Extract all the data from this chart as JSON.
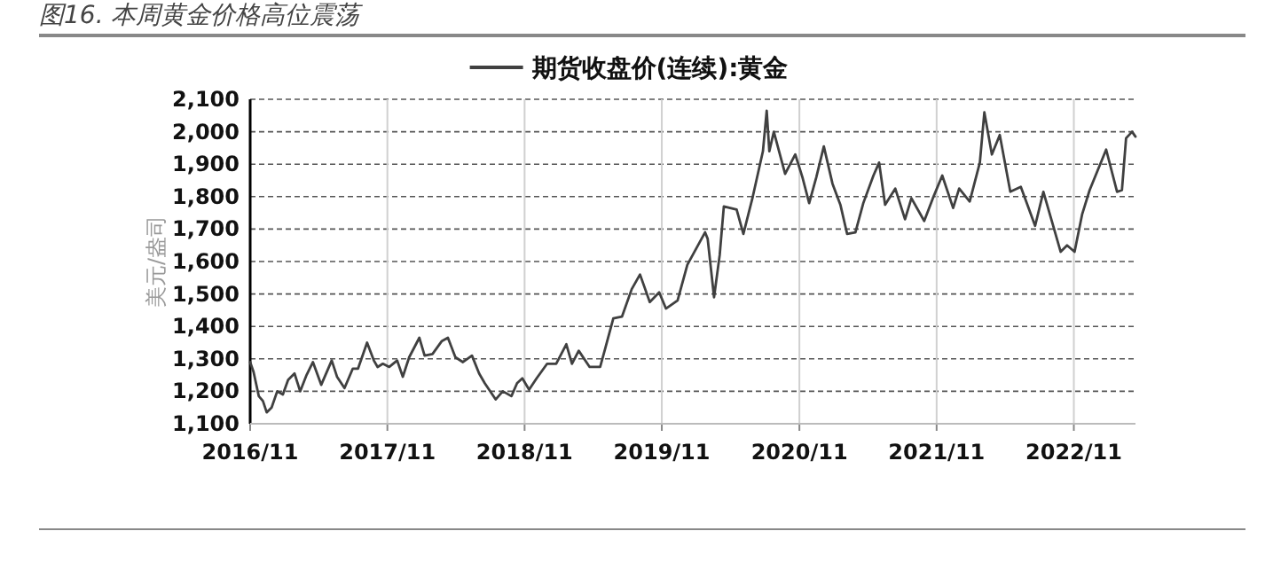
{
  "chart_data": {
    "type": "line",
    "title": "图16. 本周黄金价格高位震荡",
    "ylabel": "美元/盎司",
    "legend": "top",
    "grid": true,
    "line_style": "solid",
    "xlim": [
      "2016-11-01",
      "2023-04-14"
    ],
    "xticks": [
      {
        "value": "2016-11",
        "label": "2016/11"
      },
      {
        "value": "2017-11",
        "label": "2017/11"
      },
      {
        "value": "2018-11",
        "label": "2018/11"
      },
      {
        "value": "2019-11",
        "label": "2019/11"
      },
      {
        "value": "2020-11",
        "label": "2020/11"
      },
      {
        "value": "2021-11",
        "label": "2021/11"
      },
      {
        "value": "2022-11",
        "label": "2022/11"
      }
    ],
    "ylim": [
      1100,
      2100
    ],
    "yticks": [
      {
        "value": 1100,
        "label": "1,100"
      },
      {
        "value": 1200,
        "label": "1,200"
      },
      {
        "value": 1300,
        "label": "1,300"
      },
      {
        "value": 1400,
        "label": "1,400"
      },
      {
        "value": 1500,
        "label": "1,500"
      },
      {
        "value": 1600,
        "label": "1,600"
      },
      {
        "value": 1700,
        "label": "1,700"
      },
      {
        "value": 1800,
        "label": "1,800"
      },
      {
        "value": 1900,
        "label": "1,900"
      },
      {
        "value": 2000,
        "label": "2,000"
      },
      {
        "value": 2100,
        "label": "2,100"
      }
    ],
    "x": [
      "2016-11-01",
      "2016-11-10",
      "2016-11-24",
      "2016-12-05",
      "2016-12-15",
      "2016-12-28",
      "2017-01-12",
      "2017-01-27",
      "2017-02-10",
      "2017-02-27",
      "2017-03-14",
      "2017-03-31",
      "2017-04-17",
      "2017-05-09",
      "2017-06-06",
      "2017-06-20",
      "2017-07-10",
      "2017-08-01",
      "2017-08-15",
      "2017-09-08",
      "2017-09-26",
      "2017-10-06",
      "2017-10-20",
      "2017-11-06",
      "2017-11-27",
      "2017-12-12",
      "2017-12-29",
      "2018-01-25",
      "2018-02-08",
      "2018-03-01",
      "2018-03-26",
      "2018-04-11",
      "2018-05-01",
      "2018-05-21",
      "2018-06-14",
      "2018-07-03",
      "2018-07-18",
      "2018-08-16",
      "2018-09-04",
      "2018-09-27",
      "2018-10-12",
      "2018-10-26",
      "2018-11-13",
      "2018-12-03",
      "2018-12-31",
      "2019-01-24",
      "2019-02-20",
      "2019-03-07",
      "2019-03-25",
      "2019-04-23",
      "2019-05-21",
      "2019-06-03",
      "2019-06-25",
      "2019-07-18",
      "2019-08-13",
      "2019-09-04",
      "2019-09-30",
      "2019-10-25",
      "2019-11-12",
      "2019-12-13",
      "2020-01-08",
      "2020-02-24",
      "2020-03-02",
      "2020-03-19",
      "2020-04-03",
      "2020-04-14",
      "2020-05-18",
      "2020-06-05",
      "2020-06-30",
      "2020-07-27",
      "2020-08-06",
      "2020-08-13",
      "2020-08-25",
      "2020-09-24",
      "2020-10-21",
      "2020-11-09",
      "2020-11-27",
      "2020-12-16",
      "2021-01-05",
      "2021-01-28",
      "2021-02-18",
      "2021-03-08",
      "2021-03-30",
      "2021-04-20",
      "2021-05-17",
      "2021-06-01",
      "2021-06-17",
      "2021-07-14",
      "2021-08-09",
      "2021-08-26",
      "2021-09-29",
      "2021-10-22",
      "2021-11-16",
      "2021-12-15",
      "2021-12-31",
      "2022-01-28",
      "2022-02-24",
      "2022-03-08",
      "2022-03-28",
      "2022-04-18",
      "2022-05-16",
      "2022-06-13",
      "2022-07-21",
      "2022-08-12",
      "2022-09-27",
      "2022-10-14",
      "2022-11-03",
      "2022-11-23",
      "2022-12-13",
      "2023-01-26",
      "2023-02-24",
      "2023-03-09",
      "2023-03-20",
      "2023-04-05",
      "2023-04-14"
    ],
    "series": [
      {
        "name": "期货收盘价(连续):黄金",
        "color": "#404040",
        "values": [
          1290,
          1260,
          1185,
          1170,
          1135,
          1150,
          1200,
          1190,
          1235,
          1255,
          1200,
          1250,
          1290,
          1220,
          1295,
          1245,
          1210,
          1270,
          1270,
          1350,
          1295,
          1275,
          1285,
          1275,
          1295,
          1245,
          1305,
          1365,
          1310,
          1315,
          1355,
          1365,
          1305,
          1290,
          1310,
          1255,
          1225,
          1175,
          1200,
          1185,
          1225,
          1240,
          1205,
          1240,
          1285,
          1285,
          1345,
          1285,
          1325,
          1275,
          1275,
          1330,
          1425,
          1430,
          1515,
          1560,
          1475,
          1505,
          1455,
          1480,
          1590,
          1690,
          1670,
          1490,
          1620,
          1770,
          1760,
          1685,
          1800,
          1940,
          2065,
          1940,
          2000,
          1870,
          1930,
          1860,
          1780,
          1860,
          1955,
          1840,
          1775,
          1685,
          1690,
          1780,
          1865,
          1905,
          1775,
          1825,
          1730,
          1795,
          1725,
          1795,
          1865,
          1765,
          1825,
          1785,
          1905,
          2060,
          1930,
          1990,
          1815,
          1830,
          1710,
          1815,
          1630,
          1650,
          1630,
          1745,
          1820,
          1945,
          1815,
          1820,
          1980,
          2000,
          1985
        ]
      }
    ]
  }
}
